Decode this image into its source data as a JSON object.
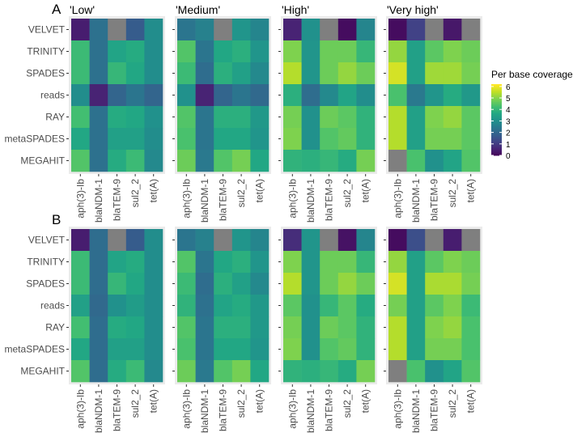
{
  "chart_data": {
    "type": "heatmap",
    "legend": {
      "title": "Per base coverage",
      "ticks": [
        0,
        1,
        2,
        3,
        4,
        5,
        6
      ],
      "range": [
        0,
        6.2
      ],
      "colormap": "viridis",
      "placement": "right",
      "na_color": "#7f7f7f"
    },
    "rows": [
      "VELVET",
      "TRINITY",
      "SPADES",
      "reads",
      "RAY",
      "metaSPADES",
      "MEGAHIT"
    ],
    "columns": [
      "aph(3)-Ib",
      "blaNDM-1",
      "blaTEM-9",
      "sul2_2",
      "tet(A)"
    ],
    "sections": [
      {
        "label": "A",
        "panels": [
          {
            "title": "'Low'",
            "values": [
              [
                0.5,
                2.3,
                null,
                1.8,
                3.0
              ],
              [
                4.2,
                2.3,
                3.6,
                3.8,
                3.0
              ],
              [
                4.2,
                2.3,
                4.1,
                3.7,
                3.0
              ],
              [
                3.0,
                0.6,
                2.0,
                2.4,
                2.0
              ],
              [
                4.3,
                2.3,
                3.8,
                3.7,
                3.1
              ],
              [
                3.7,
                2.3,
                3.5,
                3.5,
                3.0
              ],
              [
                4.5,
                2.3,
                3.8,
                4.2,
                2.9
              ]
            ]
          },
          {
            "title": "'Medium'",
            "values": [
              [
                2.4,
                2.7,
                null,
                3.2,
                2.8
              ],
              [
                4.5,
                2.4,
                3.7,
                3.9,
                3.2
              ],
              [
                4.2,
                2.2,
                3.9,
                3.5,
                2.9
              ],
              [
                3.1,
                0.6,
                2.0,
                2.4,
                2.1
              ],
              [
                4.5,
                2.4,
                3.9,
                3.9,
                3.3
              ],
              [
                4.4,
                2.4,
                3.7,
                3.7,
                3.2
              ],
              [
                4.8,
                2.5,
                4.5,
                4.9,
                3.7
              ]
            ]
          },
          {
            "title": "'High'",
            "values": [
              [
                0.6,
                3.1,
                null,
                0.2,
                2.8
              ],
              [
                5.0,
                3.2,
                4.8,
                4.8,
                4.1
              ],
              [
                5.5,
                3.2,
                4.8,
                5.2,
                4.8
              ],
              [
                3.9,
                2.2,
                2.9,
                3.6,
                3.0
              ],
              [
                4.9,
                3.1,
                4.8,
                4.6,
                4.0
              ],
              [
                5.0,
                3.1,
                4.5,
                4.7,
                4.0
              ],
              [
                4.0,
                3.9,
                4.1,
                3.8,
                4.9
              ]
            ]
          },
          {
            "title": "'Very high'",
            "values": [
              [
                0.2,
                1.2,
                null,
                0.4,
                null
              ],
              [
                5.2,
                3.5,
                4.6,
                5.0,
                4.8
              ],
              [
                5.8,
                3.5,
                5.3,
                5.3,
                4.9
              ],
              [
                4.4,
                2.5,
                3.2,
                3.8,
                3.3
              ],
              [
                5.5,
                3.5,
                5.0,
                5.2,
                4.6
              ],
              [
                5.5,
                3.5,
                4.9,
                4.9,
                4.6
              ],
              [
                null,
                4.4,
                3.1,
                3.6,
                4.5
              ]
            ]
          }
        ]
      },
      {
        "label": "B",
        "panels": [
          {
            "title": "",
            "values": [
              [
                0.5,
                2.2,
                null,
                1.8,
                3.0
              ],
              [
                4.2,
                2.2,
                3.6,
                3.8,
                3.0
              ],
              [
                4.2,
                2.2,
                4.1,
                3.7,
                3.0
              ],
              [
                3.5,
                2.1,
                3.1,
                3.4,
                3.0
              ],
              [
                4.3,
                2.2,
                3.8,
                3.7,
                3.0
              ],
              [
                3.7,
                2.2,
                3.5,
                3.5,
                3.0
              ],
              [
                4.5,
                2.2,
                3.8,
                4.2,
                2.9
              ]
            ]
          },
          {
            "title": "",
            "values": [
              [
                2.4,
                2.7,
                null,
                3.2,
                2.8
              ],
              [
                4.5,
                2.4,
                3.7,
                3.9,
                3.2
              ],
              [
                4.2,
                2.2,
                3.9,
                3.5,
                2.9
              ],
              [
                4.0,
                2.3,
                3.6,
                3.8,
                3.3
              ],
              [
                4.5,
                2.4,
                3.9,
                3.9,
                3.3
              ],
              [
                4.4,
                2.4,
                3.7,
                3.7,
                3.2
              ],
              [
                4.8,
                2.5,
                4.5,
                4.9,
                3.7
              ]
            ]
          },
          {
            "title": "",
            "values": [
              [
                0.8,
                3.2,
                null,
                0.3,
                2.8
              ],
              [
                5.0,
                3.2,
                4.8,
                4.8,
                4.1
              ],
              [
                5.5,
                3.2,
                4.8,
                5.2,
                4.8
              ],
              [
                4.6,
                3.1,
                4.1,
                4.6,
                3.8
              ],
              [
                4.9,
                3.1,
                4.8,
                4.6,
                4.0
              ],
              [
                5.0,
                3.1,
                4.5,
                4.7,
                4.0
              ],
              [
                4.0,
                3.9,
                4.1,
                3.8,
                4.9
              ]
            ]
          },
          {
            "title": "",
            "values": [
              [
                0.2,
                1.5,
                null,
                0.5,
                null
              ],
              [
                5.2,
                3.5,
                4.6,
                5.0,
                4.8
              ],
              [
                5.8,
                3.5,
                5.4,
                5.4,
                4.9
              ],
              [
                4.9,
                3.5,
                4.6,
                5.0,
                4.2
              ],
              [
                5.5,
                3.5,
                5.0,
                5.2,
                4.4
              ],
              [
                5.5,
                3.5,
                4.9,
                4.9,
                4.4
              ],
              [
                null,
                4.4,
                3.1,
                3.6,
                4.5
              ]
            ]
          }
        ]
      }
    ]
  }
}
